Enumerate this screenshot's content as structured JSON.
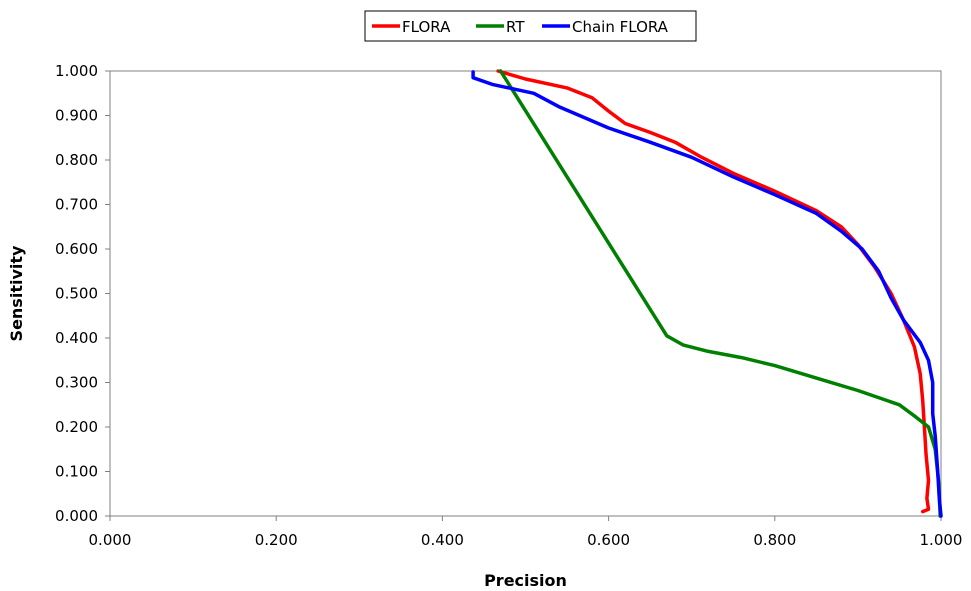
{
  "chart_data": {
    "type": "line",
    "title": "",
    "xlabel": "Precision",
    "ylabel": "Sensitivity",
    "xlim": [
      0,
      1
    ],
    "ylim": [
      0,
      1
    ],
    "x_ticks": [
      "0.000",
      "0.200",
      "0.400",
      "0.600",
      "0.800",
      "1.000"
    ],
    "y_ticks": [
      "0.000",
      "0.100",
      "0.200",
      "0.300",
      "0.400",
      "0.500",
      "0.600",
      "0.700",
      "0.800",
      "0.900",
      "1.000"
    ],
    "grid": false,
    "legend_position": "top-center",
    "series": [
      {
        "name": "FLORA",
        "color": "#ff0000",
        "points": [
          [
            0.467,
            1.0
          ],
          [
            0.5,
            0.982
          ],
          [
            0.55,
            0.962
          ],
          [
            0.58,
            0.94
          ],
          [
            0.6,
            0.91
          ],
          [
            0.62,
            0.882
          ],
          [
            0.65,
            0.862
          ],
          [
            0.68,
            0.84
          ],
          [
            0.71,
            0.808
          ],
          [
            0.75,
            0.77
          ],
          [
            0.8,
            0.73
          ],
          [
            0.85,
            0.686
          ],
          [
            0.88,
            0.65
          ],
          [
            0.9,
            0.61
          ],
          [
            0.92,
            0.56
          ],
          [
            0.94,
            0.5
          ],
          [
            0.955,
            0.44
          ],
          [
            0.968,
            0.38
          ],
          [
            0.975,
            0.32
          ],
          [
            0.978,
            0.26
          ],
          [
            0.98,
            0.2
          ],
          [
            0.982,
            0.14
          ],
          [
            0.985,
            0.08
          ],
          [
            0.983,
            0.04
          ],
          [
            0.985,
            0.015
          ],
          [
            0.978,
            0.01
          ]
        ]
      },
      {
        "name": "RT",
        "color": "#008000",
        "points": [
          [
            0.47,
            1.0
          ],
          [
            0.67,
            0.405
          ],
          [
            0.69,
            0.384
          ],
          [
            0.72,
            0.37
          ],
          [
            0.76,
            0.356
          ],
          [
            0.8,
            0.338
          ],
          [
            0.85,
            0.31
          ],
          [
            0.9,
            0.282
          ],
          [
            0.95,
            0.25
          ],
          [
            0.97,
            0.222
          ],
          [
            0.985,
            0.2
          ],
          [
            0.993,
            0.15
          ],
          [
            0.997,
            0.08
          ],
          [
            0.999,
            0.0
          ]
        ]
      },
      {
        "name": "Chain FLORA",
        "color": "#0000ff",
        "points": [
          [
            0.437,
            0.998
          ],
          [
            0.437,
            0.985
          ],
          [
            0.46,
            0.97
          ],
          [
            0.51,
            0.95
          ],
          [
            0.54,
            0.92
          ],
          [
            0.6,
            0.872
          ],
          [
            0.65,
            0.84
          ],
          [
            0.7,
            0.806
          ],
          [
            0.75,
            0.762
          ],
          [
            0.8,
            0.722
          ],
          [
            0.85,
            0.68
          ],
          [
            0.88,
            0.64
          ],
          [
            0.905,
            0.6
          ],
          [
            0.925,
            0.55
          ],
          [
            0.94,
            0.49
          ],
          [
            0.955,
            0.44
          ],
          [
            0.975,
            0.39
          ],
          [
            0.985,
            0.35
          ],
          [
            0.99,
            0.3
          ],
          [
            0.99,
            0.23
          ],
          [
            0.993,
            0.18
          ],
          [
            0.996,
            0.1
          ],
          [
            0.998,
            0.04
          ],
          [
            1.0,
            0.0
          ]
        ]
      }
    ]
  }
}
